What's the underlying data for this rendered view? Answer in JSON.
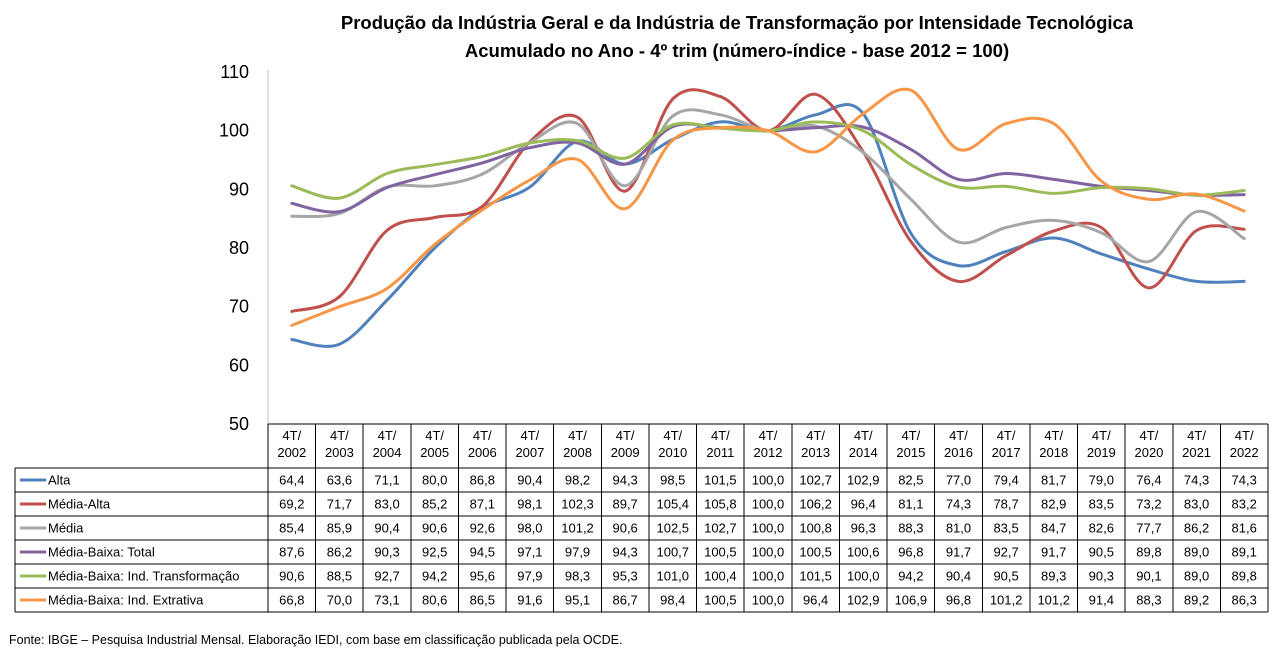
{
  "chart_data": {
    "type": "line",
    "title": "Produção da Indústria Geral e da Indústria de Transformação por Intensidade Tecnológica",
    "subtitle": "Acumulado no Ano - 4º trim (número-índice - base 2012 = 100)",
    "xlabel": "",
    "ylabel": "",
    "ylim": [
      50,
      110
    ],
    "yticks": [
      "50",
      "60",
      "70",
      "80",
      "90",
      "100",
      "110"
    ],
    "grid": false,
    "legend": "data-table",
    "categories": [
      [
        "4T/",
        "2002"
      ],
      [
        "4T/",
        "2003"
      ],
      [
        "4T/",
        "2004"
      ],
      [
        "4T/",
        "2005"
      ],
      [
        "4T/",
        "2006"
      ],
      [
        "4T/",
        "2007"
      ],
      [
        "4T/",
        "2008"
      ],
      [
        "4T/",
        "2009"
      ],
      [
        "4T/",
        "2010"
      ],
      [
        "4T/",
        "2011"
      ],
      [
        "4T/",
        "2012"
      ],
      [
        "4T/",
        "2013"
      ],
      [
        "4T/",
        "2014"
      ],
      [
        "4T/",
        "2015"
      ],
      [
        "4T/",
        "2016"
      ],
      [
        "4T/",
        "2017"
      ],
      [
        "4T/",
        "2018"
      ],
      [
        "4T/",
        "2019"
      ],
      [
        "4T/",
        "2020"
      ],
      [
        "4T/",
        "2021"
      ],
      [
        "4T/",
        "2022"
      ]
    ],
    "series": [
      {
        "name": "Alta",
        "color": "#4F81BD",
        "values": [
          "64,4",
          "63,6",
          "71,1",
          "80,0",
          "86,8",
          "90,4",
          "98,2",
          "94,3",
          "98,5",
          "101,5",
          "100,0",
          "102,7",
          "102,9",
          "82,5",
          "77,0",
          "79,4",
          "81,7",
          "79,0",
          "76,4",
          "74,3",
          "74,3"
        ]
      },
      {
        "name": "Média-Alta",
        "color": "#C0504D",
        "values": [
          "69,2",
          "71,7",
          "83,0",
          "85,2",
          "87,1",
          "98,1",
          "102,3",
          "89,7",
          "105,4",
          "105,8",
          "100,0",
          "106,2",
          "96,4",
          "81,1",
          "74,3",
          "78,7",
          "82,9",
          "83,5",
          "73,2",
          "83,0",
          "83,2"
        ]
      },
      {
        "name": "Média",
        "color": "#A6A6A6",
        "values": [
          "85,4",
          "85,9",
          "90,4",
          "90,6",
          "92,6",
          "98,0",
          "101,2",
          "90,6",
          "102,5",
          "102,7",
          "100,0",
          "100,8",
          "96,3",
          "88,3",
          "81,0",
          "83,5",
          "84,7",
          "82,6",
          "77,7",
          "86,2",
          "81,6"
        ]
      },
      {
        "name": "Média-Baixa: Total",
        "color": "#8064A2",
        "values": [
          "87,6",
          "86,2",
          "90,3",
          "92,5",
          "94,5",
          "97,1",
          "97,9",
          "94,3",
          "100,7",
          "100,5",
          "100,0",
          "100,5",
          "100,6",
          "96,8",
          "91,7",
          "92,7",
          "91,7",
          "90,5",
          "89,8",
          "89,0",
          "89,1"
        ]
      },
      {
        "name": "Média-Baixa: Ind. Transformação",
        "color": "#9BBB59",
        "values": [
          "90,6",
          "88,5",
          "92,7",
          "94,2",
          "95,6",
          "97,9",
          "98,3",
          "95,3",
          "101,0",
          "100,4",
          "100,0",
          "101,5",
          "100,0",
          "94,2",
          "90,4",
          "90,5",
          "89,3",
          "90,3",
          "90,1",
          "89,0",
          "89,8"
        ]
      },
      {
        "name": "Média-Baixa: Ind. Extrativa",
        "color": "#F79646",
        "values": [
          "66,8",
          "70,0",
          "73,1",
          "80,6",
          "86,5",
          "91,6",
          "95,1",
          "86,7",
          "98,4",
          "100,5",
          "100,0",
          "96,4",
          "102,9",
          "106,9",
          "96,8",
          "101,2",
          "101,2",
          "91,4",
          "88,3",
          "89,2",
          "86,3"
        ]
      }
    ]
  },
  "source_note": "Fonte: IBGE – Pesquisa Industrial Mensal. Elaboração IEDI, com base em classificação publicada pela OCDE."
}
